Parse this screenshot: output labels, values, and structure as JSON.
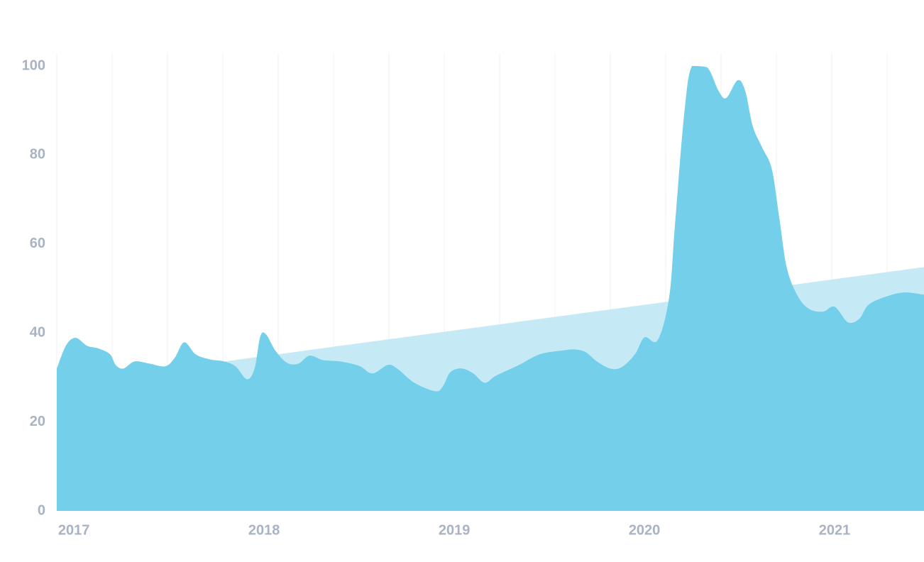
{
  "chart_data": {
    "type": "area",
    "xlim": [
      2016.91,
      2021.47
    ],
    "xticks": [
      2017,
      2018,
      2019,
      2020,
      2021
    ],
    "ylim": [
      0,
      100
    ],
    "yticks": [
      0,
      20,
      40,
      60,
      80,
      100
    ],
    "series": [
      {
        "color": "#c5eaf6",
        "x": [
          2016.91,
          2021.47
        ],
        "values": [
          28.5,
          54.8
        ]
      },
      {
        "color": "#74cfea",
        "x": [
          2016.91,
          2016.96,
          2017.01,
          2017.07,
          2017.13,
          2017.19,
          2017.22,
          2017.26,
          2017.32,
          2017.4,
          2017.48,
          2017.53,
          2017.58,
          2017.64,
          2017.71,
          2017.79,
          2017.85,
          2017.91,
          2017.95,
          2017.98,
          2018.01,
          2018.06,
          2018.12,
          2018.18,
          2018.24,
          2018.31,
          2018.4,
          2018.5,
          2018.57,
          2018.65,
          2018.7,
          2018.79,
          2018.9,
          2018.94,
          2018.98,
          2019.04,
          2019.1,
          2019.16,
          2019.22,
          2019.34,
          2019.45,
          2019.56,
          2019.63,
          2019.69,
          2019.75,
          2019.82,
          2019.88,
          2019.95,
          2020.0,
          2020.07,
          2020.13,
          2020.16,
          2020.21,
          2020.25,
          2020.33,
          2020.39,
          2020.43,
          2020.49,
          2020.53,
          2020.57,
          2020.62,
          2020.67,
          2020.71,
          2020.75,
          2020.81,
          2020.87,
          2020.94,
          2021.0,
          2021.07,
          2021.13,
          2021.18,
          2021.28,
          2021.37,
          2021.47
        ],
        "values": [
          32,
          37.3,
          38.9,
          37.1,
          36.5,
          35.2,
          32.8,
          32,
          33.6,
          33.1,
          32.5,
          34.4,
          37.9,
          35.2,
          34.1,
          33.6,
          32.5,
          29.6,
          32,
          39.2,
          39.7,
          36,
          33.3,
          33.1,
          34.9,
          33.9,
          33.6,
          32.6,
          30.9,
          32.8,
          32,
          28.8,
          26.9,
          28,
          31.2,
          32,
          30.9,
          28.8,
          30.4,
          32.8,
          35.2,
          36,
          36.3,
          35.7,
          33.6,
          32,
          32.3,
          35.2,
          39,
          38.4,
          48,
          64,
          89.6,
          100,
          99.7,
          94.4,
          92.8,
          96.8,
          94.4,
          86.4,
          81.6,
          76.8,
          65.6,
          54.4,
          48,
          45.3,
          44.8,
          45.9,
          42.4,
          43.2,
          46.4,
          48.3,
          49.1,
          48.6
        ]
      }
    ]
  }
}
